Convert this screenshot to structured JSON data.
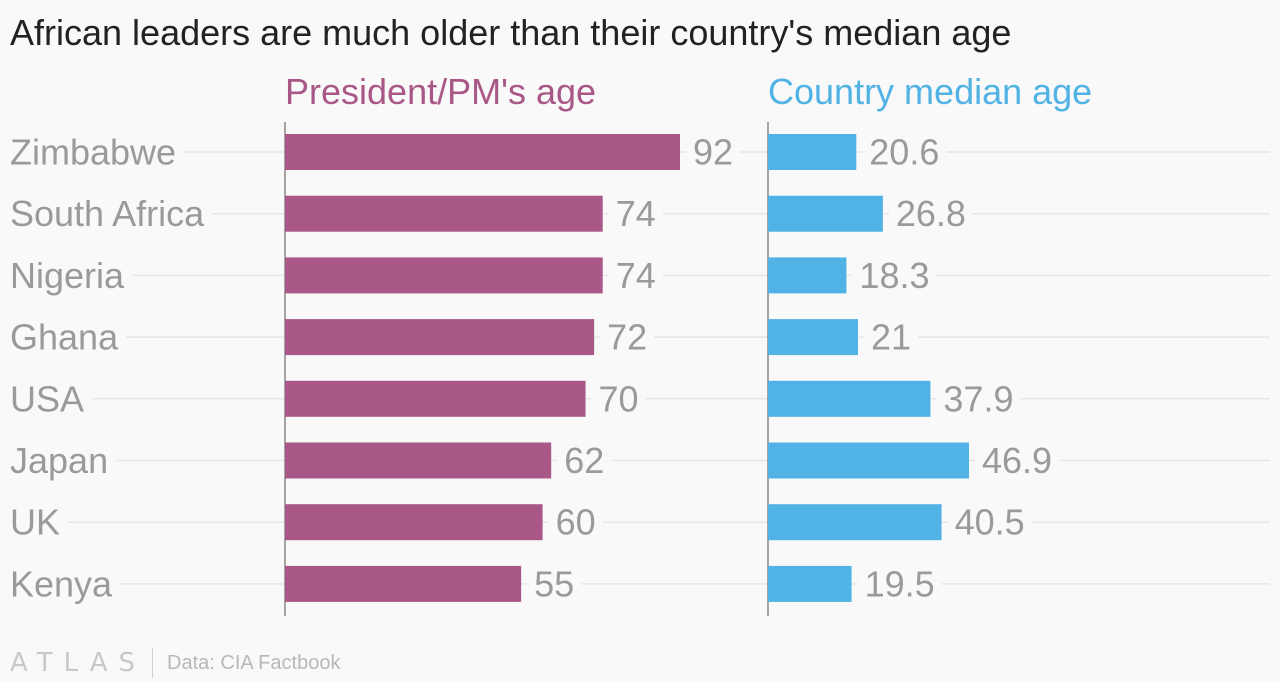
{
  "title": "African leaders are much older than their country's median age",
  "footer": {
    "logo": "ATLAS",
    "source": "Data: CIA Factbook"
  },
  "colors": {
    "leader": "#a95787",
    "median": "#51b2e5",
    "label_text": "#9a9a9a",
    "gridline": "#e6e6e6",
    "axis": "#888888"
  },
  "chart_data": {
    "type": "bar",
    "orientation": "horizontal",
    "categories": [
      "Zimbabwe",
      "South Africa",
      "Nigeria",
      "Ghana",
      "USA",
      "Japan",
      "UK",
      "Kenya"
    ],
    "series": [
      {
        "name": "President/PM's age",
        "values": [
          92,
          74,
          74,
          72,
          70,
          62,
          60,
          55
        ],
        "labels": [
          "92",
          "74",
          "74",
          "72",
          "70",
          "62",
          "60",
          "55"
        ]
      },
      {
        "name": "Country median age",
        "values": [
          20.6,
          26.8,
          18.3,
          21,
          37.9,
          46.9,
          40.5,
          19.5
        ],
        "labels": [
          "20.6",
          "26.8",
          "18.3",
          "21",
          "37.9",
          "46.9",
          "40.5",
          "19.5"
        ]
      }
    ],
    "legend": "panel headers",
    "grid": true
  }
}
